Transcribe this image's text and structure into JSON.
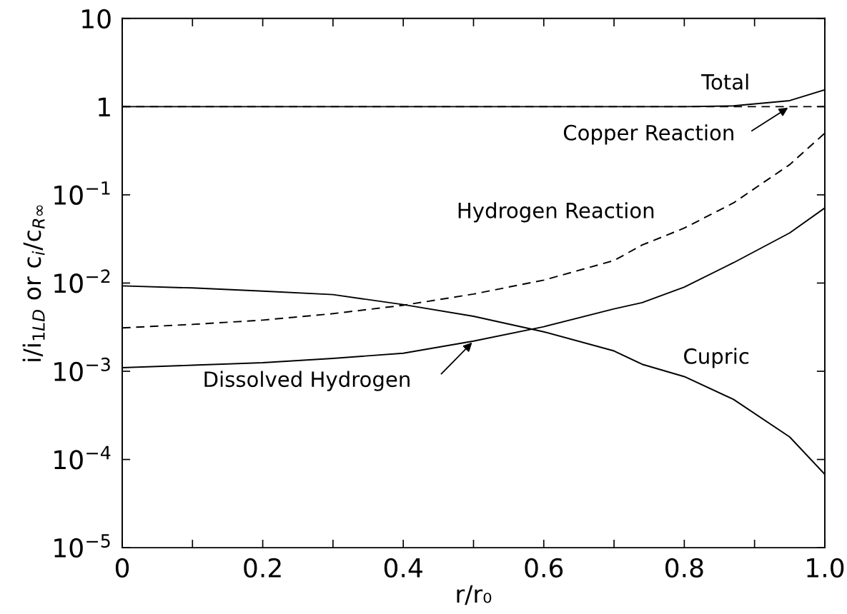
{
  "chart_data": {
    "type": "line",
    "xlabel": "r/r₀",
    "ylabel": "i/i$_{1LD}$ or c$_{i}$/c$_{R∞}$",
    "log": "y",
    "grid": false,
    "legend": false,
    "marker": "none",
    "x": [
      0,
      0.1,
      0.2,
      0.3,
      0.4,
      0.5,
      0.6,
      0.7,
      0.74,
      0.8,
      0.87,
      0.95,
      1.0
    ],
    "series": [
      {
        "name": "Total",
        "color": "#000000",
        "line_style": "solid",
        "values": [
          1,
          1,
          1,
          1,
          1,
          1,
          1,
          1,
          1,
          1,
          1.02,
          1.17,
          1.55
        ]
      },
      {
        "name": "Copper Reaction",
        "color": "#000000",
        "line_style": "dashed",
        "values": [
          1,
          1,
          1,
          1,
          1,
          1,
          1,
          1,
          1,
          1,
          1,
          1,
          1
        ]
      },
      {
        "name": "Hydrogen Reaction",
        "color": "#000000",
        "line_style": "dashed",
        "values": [
          0.0031,
          0.0034,
          0.0038,
          0.0045,
          0.0056,
          0.0075,
          0.0108,
          0.018,
          0.027,
          0.042,
          0.081,
          0.22,
          0.5
        ]
      },
      {
        "name": "Cupric",
        "color": "#000000",
        "line_style": "solid",
        "values": [
          0.0093,
          0.0088,
          0.0081,
          0.0074,
          0.0057,
          0.0042,
          0.0028,
          0.0017,
          0.0012,
          0.00087,
          0.00048,
          0.00018,
          6.8e-05
        ]
      },
      {
        "name": "Dissolved Hydrogen",
        "color": "#000000",
        "line_style": "solid",
        "values": [
          0.0011,
          0.00117,
          0.00125,
          0.0014,
          0.0016,
          0.0022,
          0.0032,
          0.0051,
          0.006,
          0.009,
          0.017,
          0.037,
          0.071
        ]
      }
    ],
    "xlim": [
      0,
      1.0
    ],
    "xticks": [
      0,
      {
        "value": 0.1,
        "label": null
      },
      0.2,
      {
        "value": 0.3,
        "label": null
      },
      0.4,
      {
        "value": 0.5,
        "label": null
      },
      0.6,
      {
        "value": 0.7,
        "label": null
      },
      0.8,
      {
        "value": 0.9,
        "label": null
      },
      {
        "value": 1.0,
        "label": "1.0"
      }
    ],
    "ylim": [
      1e-05,
      10
    ],
    "yticks": [
      {
        "value": 1e-05,
        "label": "10$^{−5}$"
      },
      {
        "value": 0.0001,
        "label": "10$^{−4}$"
      },
      {
        "value": 0.001,
        "label": "10$^{−3}$"
      },
      {
        "value": 0.01,
        "label": "10$^{−2}$"
      },
      {
        "value": 0.1,
        "label": "10$^{−1}$"
      },
      1,
      10
    ]
  }
}
